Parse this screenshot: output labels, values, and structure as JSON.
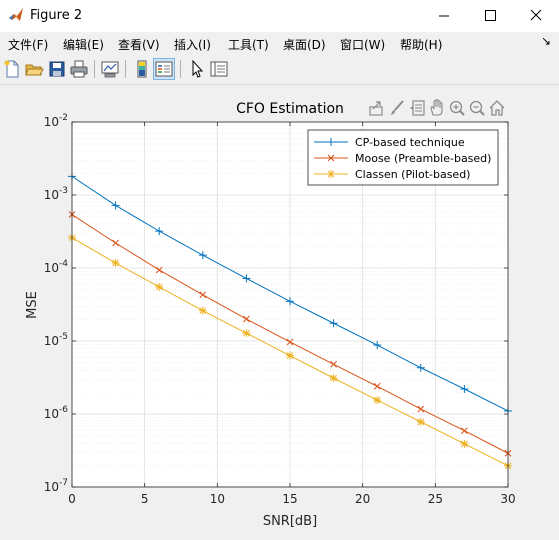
{
  "window": {
    "title": "Figure 2"
  },
  "menu": {
    "items": [
      "文件(F)",
      "编辑(E)",
      "查看(V)",
      "插入(I)",
      "工具(T)",
      "桌面(D)",
      "窗口(W)",
      "帮助(H)"
    ]
  },
  "toolbar": {
    "buttons": [
      {
        "name": "new-figure-button",
        "icon": "new-file-icon"
      },
      {
        "name": "open-file-button",
        "icon": "folder-open-icon"
      },
      {
        "name": "save-button",
        "icon": "floppy-disk-icon"
      },
      {
        "name": "print-button",
        "icon": "printer-icon"
      },
      {
        "name": "link-plot-button",
        "icon": "link-plot-icon"
      },
      {
        "name": "insert-colorbar-button",
        "icon": "colorbar-icon"
      },
      {
        "name": "insert-legend-button",
        "icon": "legend-icon"
      },
      {
        "name": "edit-plot-button",
        "icon": "pointer-arrow-icon"
      },
      {
        "name": "property-inspector-button",
        "icon": "property-inspector-icon"
      }
    ]
  },
  "axes_toolbar": {
    "icons": [
      "export-icon",
      "brush-icon",
      "datatip-icon",
      "pan-hand-icon",
      "zoom-in-icon",
      "zoom-out-icon",
      "home-icon"
    ]
  },
  "chart_data": {
    "type": "line",
    "title": "CFO Estimation",
    "xlabel": "SNR[dB]",
    "ylabel": "MSE",
    "xlim": [
      0,
      30
    ],
    "ylim": [
      1e-07,
      0.01
    ],
    "y_scale": "log",
    "grid": true,
    "minor_grid": true,
    "legend_position": "top-right",
    "x_ticks": [
      "0",
      "5",
      "10",
      "15",
      "20",
      "25",
      "30"
    ],
    "y_ticks": [
      {
        "base": "10",
        "exp": "-7"
      },
      {
        "base": "10",
        "exp": "-6"
      },
      {
        "base": "10",
        "exp": "-5"
      },
      {
        "base": "10",
        "exp": "-4"
      },
      {
        "base": "10",
        "exp": "-3"
      },
      {
        "base": "10",
        "exp": "-2"
      }
    ],
    "x": [
      0,
      3,
      6,
      9,
      12,
      15,
      18,
      21,
      24,
      27,
      30
    ],
    "series": [
      {
        "name": "CP-based technique",
        "color": "#0072bd",
        "marker": "plus",
        "values": [
          0.0018,
          0.00072,
          0.00032,
          0.00015,
          7.2e-05,
          3.5e-05,
          1.75e-05,
          8.8e-06,
          4.3e-06,
          2.2e-06,
          1.1e-06
        ]
      },
      {
        "name": "Moose (Preamble-based)",
        "color": "#d95319",
        "marker": "cross",
        "values": [
          0.00054,
          0.00022,
          9.4e-05,
          4.3e-05,
          2e-05,
          9.7e-06,
          4.8e-06,
          2.4e-06,
          1.17e-06,
          5.9e-07,
          2.9e-07
        ]
      },
      {
        "name": "Classen (Pilot-based)",
        "color": "#edb120",
        "marker": "star",
        "values": [
          0.00026,
          0.000117,
          5.5e-05,
          2.6e-05,
          1.28e-05,
          6.3e-06,
          3.1e-06,
          1.55e-06,
          7.8e-07,
          3.9e-07,
          1.95e-07
        ]
      }
    ]
  }
}
